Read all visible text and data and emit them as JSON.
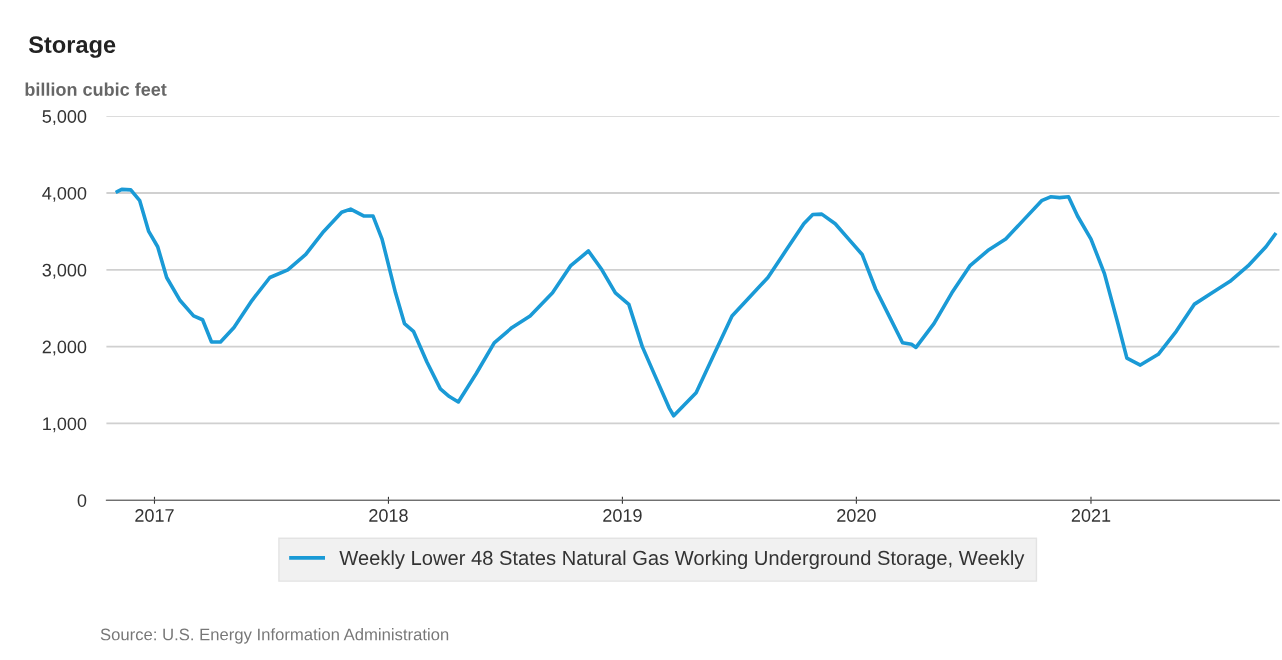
{
  "chart_data": {
    "type": "line",
    "title": "Storage",
    "ylabel": "billion cubic feet",
    "x": [
      "2016-11-04",
      "2016-11-11",
      "2016-11-25",
      "2016-12-09",
      "2016-12-23",
      "2017-01-06",
      "2017-01-20",
      "2017-02-10",
      "2017-03-03",
      "2017-03-17",
      "2017-03-31",
      "2017-04-14",
      "2017-05-05",
      "2017-06-02",
      "2017-06-30",
      "2017-07-28",
      "2017-08-25",
      "2017-09-22",
      "2017-10-20",
      "2017-11-03",
      "2017-11-24",
      "2017-12-08",
      "2017-12-22",
      "2018-01-12",
      "2018-01-26",
      "2018-02-09",
      "2018-03-02",
      "2018-03-23",
      "2018-04-06",
      "2018-04-20",
      "2018-05-18",
      "2018-06-15",
      "2018-07-13",
      "2018-08-10",
      "2018-09-14",
      "2018-10-12",
      "2018-11-09",
      "2018-11-30",
      "2018-12-21",
      "2019-01-11",
      "2019-02-01",
      "2019-02-22",
      "2019-03-15",
      "2019-03-22",
      "2019-04-26",
      "2019-05-24",
      "2019-06-21",
      "2019-07-19",
      "2019-08-16",
      "2019-09-13",
      "2019-10-11",
      "2019-10-25",
      "2019-11-08",
      "2019-11-29",
      "2019-12-20",
      "2020-01-10",
      "2020-01-31",
      "2020-02-21",
      "2020-03-13",
      "2020-03-27",
      "2020-04-03",
      "2020-05-01",
      "2020-05-29",
      "2020-06-26",
      "2020-07-24",
      "2020-08-21",
      "2020-09-18",
      "2020-10-16",
      "2020-10-30",
      "2020-11-13",
      "2020-11-27",
      "2020-12-11",
      "2021-01-01",
      "2021-01-22",
      "2021-02-12",
      "2021-02-26",
      "2021-03-19",
      "2021-04-16",
      "2021-05-14",
      "2021-06-11",
      "2021-07-09",
      "2021-08-06",
      "2021-09-03",
      "2021-10-01",
      "2021-10-15"
    ],
    "series": [
      {
        "name": "Weekly Lower 48 States Natural Gas Working Underground Storage, Weekly",
        "color": "#1a9ad6",
        "values": [
          4017,
          4047,
          4040,
          3900,
          3500,
          3300,
          2900,
          2600,
          2400,
          2350,
          2060,
          2060,
          2250,
          2600,
          2900,
          3000,
          3200,
          3500,
          3750,
          3790,
          3700,
          3700,
          3400,
          2700,
          2300,
          2200,
          1800,
          1450,
          1350,
          1280,
          1650,
          2050,
          2250,
          2400,
          2700,
          3050,
          3245,
          3000,
          2700,
          2550,
          2000,
          1600,
          1200,
          1100,
          1400,
          1900,
          2400,
          2650,
          2900,
          3250,
          3600,
          3720,
          3725,
          3600,
          3400,
          3200,
          2750,
          2400,
          2050,
          2030,
          1990,
          2300,
          2700,
          3050,
          3250,
          3400,
          3650,
          3900,
          3950,
          3940,
          3950,
          3700,
          3400,
          2950,
          2300,
          1850,
          1760,
          1900,
          2200,
          2550,
          2700,
          2850,
          3050,
          3300,
          3460
        ]
      }
    ],
    "xlim": [
      "2016-10-18",
      "2021-10-22"
    ],
    "xticks": [
      {
        "value": "2017-01-01",
        "label": "2017"
      },
      {
        "value": "2018-01-01",
        "label": "2018"
      },
      {
        "value": "2019-01-01",
        "label": "2019"
      },
      {
        "value": "2020-01-01",
        "label": "2020"
      },
      {
        "value": "2021-01-01",
        "label": "2021"
      }
    ],
    "ylim": [
      0,
      5000
    ],
    "yticks": [
      {
        "value": 0,
        "label": "0"
      },
      {
        "value": 1000,
        "label": "1,000"
      },
      {
        "value": 2000,
        "label": "2,000"
      },
      {
        "value": 3000,
        "label": "3,000"
      },
      {
        "value": 4000,
        "label": "4,000"
      },
      {
        "value": 5000,
        "label": "5,000"
      }
    ],
    "grid": "y",
    "legend": "bottom",
    "annotations": [
      "Source: U.S. Energy Information Administration"
    ]
  }
}
